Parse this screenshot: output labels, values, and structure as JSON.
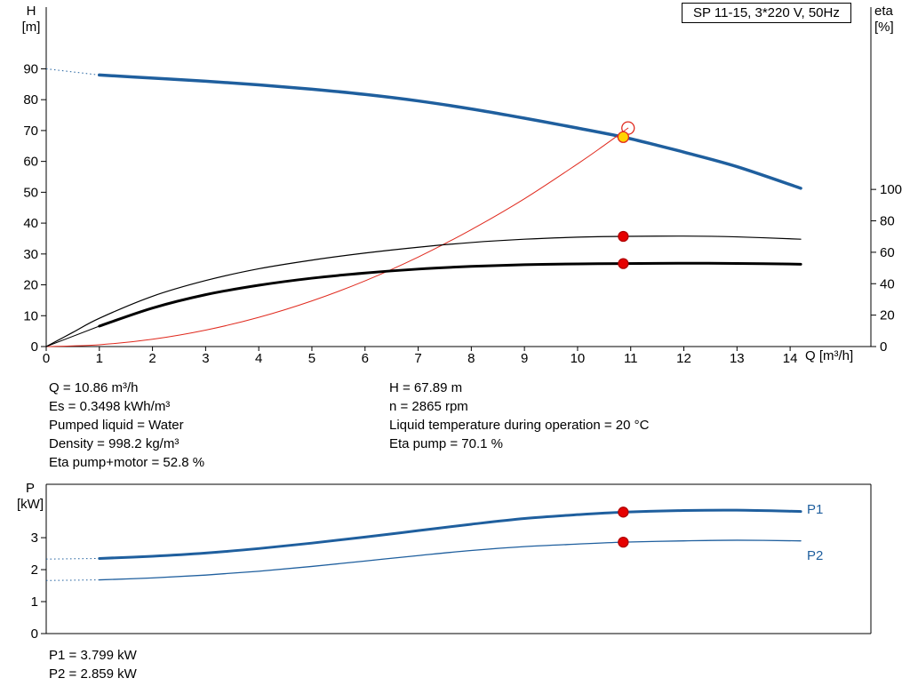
{
  "title_box": "SP 11-15, 3*220 V, 50Hz",
  "colors": {
    "curve_blue": "#1f5f9e",
    "curve_red": "#e02a1e",
    "curve_black": "#000000",
    "marker_yellow": "#ffd400",
    "marker_red": "#e60000",
    "label_blue": "#1f5f9e"
  },
  "top_chart": {
    "y_left_title": [
      "H",
      "[m]"
    ],
    "y_right_title": [
      "eta",
      "[%]"
    ],
    "x_title": "Q [m³/h]"
  },
  "bottom_chart": {
    "y_left_title": [
      "P",
      "[kW]"
    ]
  },
  "info_block": {
    "left": [
      "Q = 10.86 m³/h",
      "Es = 0.3498 kWh/m³",
      "Pumped liquid = Water",
      "Density = 998.2 kg/m³",
      "Eta pump+motor = 52.8 %"
    ],
    "right": [
      "H = 67.89 m",
      "n = 2865 rpm",
      "Liquid temperature during operation = 20 °C",
      "Eta pump = 70.1 %"
    ]
  },
  "power_block": [
    "P1 = 3.799 kW",
    "P2 = 2.859 kW"
  ],
  "chart_data": [
    {
      "type": "line",
      "title": "SP 11-15, 3*220 V, 50Hz",
      "xlabel": "Q [m³/h]",
      "ylabel_left": "H [m]",
      "ylabel_right": "eta [%]",
      "xlim": [
        0,
        15.52
      ],
      "ylim_left": [
        0,
        110
      ],
      "ylim_right": [
        0,
        216
      ],
      "grid": false,
      "x_ticks": [
        0,
        1,
        2,
        3,
        4,
        5,
        6,
        7,
        8,
        9,
        10,
        11,
        12,
        13,
        14
      ],
      "y_ticks_left": [
        0,
        10,
        20,
        30,
        40,
        50,
        60,
        70,
        80,
        90
      ],
      "y_ticks_right": [
        0,
        20,
        40,
        60,
        80,
        100
      ],
      "series": [
        {
          "id": "hq-curve",
          "name": "H(Q) pump curve",
          "axis": "left",
          "color": "#1f5f9e",
          "width": 3.5,
          "x": [
            1,
            2,
            3,
            4,
            5,
            6,
            7,
            8,
            9,
            10,
            10.86,
            11.5,
            12,
            13,
            14.2
          ],
          "y": [
            88,
            87,
            86,
            84.8,
            83.4,
            81.7,
            79.6,
            77,
            74,
            70.8,
            67.89,
            65.2,
            63,
            58.3,
            51.3
          ],
          "lead": {
            "style": "dotted",
            "width": 1,
            "x": [
              0,
              1
            ],
            "y": [
              90,
              88
            ]
          }
        },
        {
          "id": "system-curve",
          "name": "System curve",
          "axis": "left",
          "color": "#e02a1e",
          "width": 1,
          "x": [
            0,
            1,
            2,
            3,
            4,
            5,
            6,
            7,
            8,
            9,
            10,
            10.5,
            10.95
          ],
          "y": [
            0,
            0.59,
            2.37,
            5.33,
            9.47,
            14.8,
            21.3,
            29,
            37.9,
            47.9,
            59.2,
            65.2,
            70.8
          ]
        },
        {
          "id": "eta-pump-curve",
          "name": "Eta pump",
          "axis": "right",
          "color": "#000000",
          "width": 1.2,
          "x": [
            0,
            0.5,
            1,
            2,
            3,
            4,
            5,
            6,
            7,
            8,
            9,
            10,
            10.86,
            12,
            13,
            14.2
          ],
          "y": [
            0,
            9,
            18,
            32,
            42,
            49.5,
            55,
            59.5,
            63.2,
            66.2,
            68.3,
            69.6,
            70.1,
            70.3,
            69.8,
            68.3
          ]
        },
        {
          "id": "eta-pump-motor-curve",
          "name": "Eta pump+motor",
          "axis": "right",
          "color": "#000000",
          "width": 3,
          "x": [
            1,
            2,
            3,
            4,
            5,
            6,
            7,
            8,
            9,
            10,
            10.86,
            12,
            13,
            14.2
          ],
          "y": [
            13,
            24.5,
            33,
            39,
            43.5,
            46.8,
            49.3,
            51,
            52.1,
            52.6,
            52.8,
            53,
            52.9,
            52.4
          ],
          "lead": {
            "style": "solid",
            "width": 1,
            "x": [
              0,
              1
            ],
            "y": [
              0,
              13
            ]
          }
        }
      ],
      "markers": [
        {
          "name": "rated-duty-circle",
          "shape": "circle-open",
          "axis": "left",
          "x": 10.95,
          "y": 70.8,
          "r": 7,
          "color": "#e02a1e"
        },
        {
          "name": "duty-point-marker",
          "shape": "dot",
          "axis": "left",
          "x": 10.86,
          "y": 67.89,
          "r": 6,
          "fill": "#ffd400",
          "stroke": "#e02a1e"
        },
        {
          "name": "eta-pump-point",
          "shape": "dot",
          "axis": "right",
          "x": 10.86,
          "y": 70.1,
          "r": 5.5,
          "fill": "#e60000",
          "stroke": "#b00000"
        },
        {
          "name": "eta-pump-motor-point",
          "shape": "dot",
          "axis": "right",
          "x": 10.86,
          "y": 52.8,
          "r": 5.5,
          "fill": "#e60000",
          "stroke": "#b00000"
        }
      ],
      "operating_point": {
        "Q": 10.86,
        "H": 67.89,
        "eta_pump": 70.1,
        "eta_pump_motor": 52.8
      }
    },
    {
      "type": "line",
      "title": "",
      "xlabel": "",
      "ylabel_left": "P [kW]",
      "xlim": [
        0,
        15.52
      ],
      "ylim_left": [
        0,
        4.67
      ],
      "grid": false,
      "x_ticks": [],
      "y_ticks_left": [
        0,
        1,
        2,
        3
      ],
      "series": [
        {
          "id": "p1-curve",
          "name": "P1",
          "axis": "left",
          "color": "#1f5f9e",
          "width": 3,
          "x": [
            1,
            2,
            3,
            4,
            5,
            6,
            7,
            8,
            9,
            10,
            10.86,
            12,
            13,
            14.2
          ],
          "y": [
            2.35,
            2.42,
            2.52,
            2.66,
            2.83,
            3.02,
            3.22,
            3.42,
            3.6,
            3.72,
            3.799,
            3.85,
            3.86,
            3.82
          ],
          "lead": {
            "style": "dotted",
            "width": 1,
            "x": [
              0,
              1
            ],
            "y": [
              2.33,
              2.35
            ]
          }
        },
        {
          "id": "p2-curve",
          "name": "P2",
          "axis": "left",
          "color": "#1f5f9e",
          "width": 1.3,
          "x": [
            1,
            2,
            3,
            4,
            5,
            6,
            7,
            8,
            9,
            10,
            10.86,
            12,
            13,
            14.2
          ],
          "y": [
            1.68,
            1.74,
            1.83,
            1.95,
            2.1,
            2.27,
            2.44,
            2.6,
            2.72,
            2.8,
            2.859,
            2.9,
            2.92,
            2.9
          ],
          "lead": {
            "style": "dotted",
            "width": 1,
            "x": [
              0,
              1
            ],
            "y": [
              1.66,
              1.68
            ]
          }
        }
      ],
      "markers": [
        {
          "name": "p1-point",
          "shape": "dot",
          "axis": "left",
          "x": 10.86,
          "y": 3.799,
          "r": 5.5,
          "fill": "#e60000",
          "stroke": "#b00000"
        },
        {
          "name": "p2-point",
          "shape": "dot",
          "axis": "left",
          "x": 10.86,
          "y": 2.859,
          "r": 5.5,
          "fill": "#e60000",
          "stroke": "#b00000"
        }
      ],
      "values": {
        "P1": 3.799,
        "P2": 2.859
      }
    }
  ]
}
